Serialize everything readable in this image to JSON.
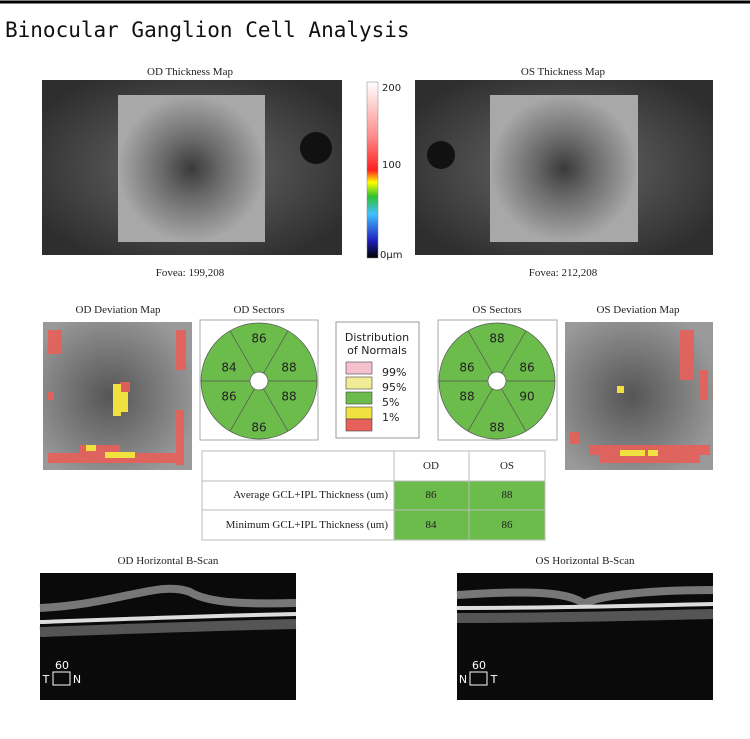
{
  "header": {
    "title": "Binocular Ganglion Cell Analysis"
  },
  "thickness_maps": [
    {
      "title": "OD Thickness Map",
      "fovea": "Fovea: 199,208"
    },
    {
      "title": "OS Thickness Map",
      "fovea": "Fovea: 212,208"
    }
  ],
  "colorbar": {
    "labels": [
      "200",
      "100",
      "0µm"
    ]
  },
  "deviation_maps": [
    {
      "title": "OD Deviation Map"
    },
    {
      "title": "OS Deviation Map"
    }
  ],
  "sectors": [
    {
      "title": "OD Sectors",
      "values": [
        86,
        88,
        88,
        86,
        86,
        84
      ]
    },
    {
      "title": "OS Sectors",
      "values": [
        88,
        86,
        90,
        88,
        88,
        86
      ]
    }
  ],
  "legend": {
    "title": [
      "Distribution",
      "of Normals"
    ],
    "items": [
      "99%",
      "95%",
      "5%",
      "1%"
    ]
  },
  "table": {
    "columns": [
      "OD",
      "OS"
    ],
    "rows": [
      {
        "label": "Average GCL+IPL Thickness (um)",
        "values": [
          86,
          88
        ]
      },
      {
        "label": "Minimum GCL+IPL Thickness (um)",
        "values": [
          84,
          86
        ]
      }
    ]
  },
  "bscans": [
    {
      "title": "OD Horizontal B-Scan",
      "scale": "60",
      "left": "T",
      "right": "N"
    },
    {
      "title": "OS Horizontal B-Scan",
      "scale": "60",
      "left": "N",
      "right": "T"
    }
  ]
}
